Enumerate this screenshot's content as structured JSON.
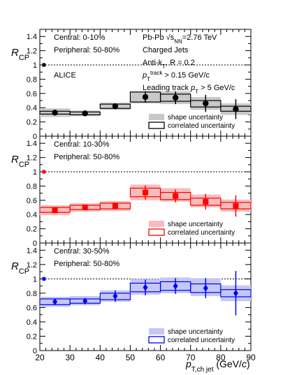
{
  "chart_data": {
    "type": "line",
    "x_axis": {
      "label_main": "p",
      "label_sub": "T,ch jet",
      "label_unit_pre": "(GeV/",
      "label_unit_it": "c",
      "label_unit_post": ")",
      "range": [
        20,
        90
      ],
      "ticks": [
        "20",
        "30",
        "40",
        "50",
        "60",
        "70",
        "80",
        "90"
      ]
    },
    "y_axis": {
      "label_main": "R",
      "label_sub": "CP",
      "range": [
        0,
        1.5
      ],
      "ticks": [
        "0",
        "0.2",
        "0.4",
        "0.6",
        "0.8",
        "1",
        "1.2",
        "1.4"
      ]
    },
    "reference_line": 1,
    "bins": [
      [
        20,
        30
      ],
      [
        30,
        40
      ],
      [
        40,
        50
      ],
      [
        50,
        60
      ],
      [
        60,
        70
      ],
      [
        70,
        80
      ],
      [
        80,
        90
      ]
    ],
    "panels": [
      {
        "color": "#000000",
        "fill": "#c8c8c8",
        "marker": "circle",
        "norm_unc": [
          0.975,
          1.025
        ],
        "central_label": "Central: 0-10%",
        "peripheral_label": "Peripheral: 50-80%",
        "experiment": "ALICE",
        "info": {
          "collision": "Pb-Pb",
          "energy": "=2.76 TeV",
          "energy_sub": "NN",
          "jets": "Charged Jets",
          "algo_pre": "Anti-k",
          "algo_sub": "T",
          "algo_post": ", R = 0.2",
          "track_sup": "track",
          "track_sub": "T",
          "track_post": " > 0.15 GeV/c",
          "leading_pre": "Leading track ",
          "leading_sub": "T",
          "leading_post": " > 5 GeV/c"
        },
        "legend": [
          "shape uncertainty",
          "correlated uncertainty"
        ],
        "points": [
          {
            "x": 25,
            "y": 0.33,
            "stat": 0.03,
            "shape": [
              0.27,
              0.39
            ],
            "corr": [
              0.31,
              0.35
            ]
          },
          {
            "x": 35,
            "y": 0.32,
            "stat": 0.03,
            "shape": [
              0.28,
              0.36
            ],
            "corr": [
              0.3,
              0.34
            ]
          },
          {
            "x": 45,
            "y": 0.42,
            "stat": 0.04,
            "shape": [
              0.37,
              0.47
            ],
            "corr": [
              0.39,
              0.45
            ]
          },
          {
            "x": 55,
            "y": 0.55,
            "stat": 0.08,
            "shape": [
              0.46,
              0.63
            ],
            "corr": [
              0.48,
              0.62
            ]
          },
          {
            "x": 65,
            "y": 0.54,
            "stat": 0.09,
            "shape": [
              0.45,
              0.63
            ],
            "corr": [
              0.49,
              0.59
            ]
          },
          {
            "x": 75,
            "y": 0.46,
            "stat": 0.12,
            "shape": [
              0.37,
              0.55
            ],
            "corr": [
              0.41,
              0.5
            ]
          },
          {
            "x": 85,
            "y": 0.38,
            "stat": 0.14,
            "shape": [
              0.3,
              0.46
            ],
            "corr": [
              0.35,
              0.42
            ]
          }
        ]
      },
      {
        "color": "#ff0000",
        "fill": "#f7bcbc",
        "marker": "square",
        "norm_unc": [
          0.975,
          1.025
        ],
        "central_label": "Central: 10-30%",
        "peripheral_label": "Peripheral: 50-80%",
        "legend": [
          "shape uncertainty",
          "correlated uncertainty"
        ],
        "points": [
          {
            "x": 25,
            "y": 0.46,
            "stat": 0.03,
            "shape": [
              0.39,
              0.53
            ],
            "corr": [
              0.43,
              0.5
            ]
          },
          {
            "x": 35,
            "y": 0.5,
            "stat": 0.03,
            "shape": [
              0.44,
              0.56
            ],
            "corr": [
              0.47,
              0.53
            ]
          },
          {
            "x": 45,
            "y": 0.52,
            "stat": 0.05,
            "shape": [
              0.45,
              0.59
            ],
            "corr": [
              0.48,
              0.56
            ]
          },
          {
            "x": 55,
            "y": 0.71,
            "stat": 0.1,
            "shape": [
              0.6,
              0.82
            ],
            "corr": [
              0.65,
              0.77
            ]
          },
          {
            "x": 65,
            "y": 0.66,
            "stat": 0.09,
            "shape": [
              0.58,
              0.77
            ],
            "corr": [
              0.61,
              0.71
            ]
          },
          {
            "x": 75,
            "y": 0.58,
            "stat": 0.11,
            "shape": [
              0.5,
              0.68
            ],
            "corr": [
              0.53,
              0.63
            ]
          },
          {
            "x": 85,
            "y": 0.52,
            "stat": 0.15,
            "shape": [
              0.44,
              0.61
            ],
            "corr": [
              0.48,
              0.57
            ]
          }
        ]
      },
      {
        "color": "#0000ff",
        "fill": "#c4c8f3",
        "marker": "diamond",
        "norm_unc": [
          0.975,
          1.025
        ],
        "central_label": "Central: 30-50%",
        "peripheral_label": "Peripheral: 50-80%",
        "legend": [
          "shape uncertainty",
          "correlated uncertainty"
        ],
        "points": [
          {
            "x": 25,
            "y": 0.68,
            "stat": 0.04,
            "shape": [
              0.61,
              0.75
            ],
            "corr": [
              0.64,
              0.72
            ]
          },
          {
            "x": 35,
            "y": 0.69,
            "stat": 0.04,
            "shape": [
              0.63,
              0.76
            ],
            "corr": [
              0.66,
              0.72
            ]
          },
          {
            "x": 45,
            "y": 0.76,
            "stat": 0.08,
            "shape": [
              0.68,
              0.84
            ],
            "corr": [
              0.71,
              0.8
            ]
          },
          {
            "x": 55,
            "y": 0.88,
            "stat": 0.11,
            "shape": [
              0.78,
              1.0
            ],
            "corr": [
              0.82,
              0.94
            ]
          },
          {
            "x": 65,
            "y": 0.9,
            "stat": 0.11,
            "shape": [
              0.8,
              1.02
            ],
            "corr": [
              0.84,
              0.96
            ]
          },
          {
            "x": 75,
            "y": 0.87,
            "stat": 0.14,
            "shape": [
              0.76,
              1.01
            ],
            "corr": [
              0.81,
              0.93
            ]
          },
          {
            "x": 85,
            "y": 0.8,
            "stat": 0.31,
            "shape": [
              0.69,
              0.91
            ],
            "corr": [
              0.75,
              0.85
            ]
          }
        ]
      }
    ]
  }
}
